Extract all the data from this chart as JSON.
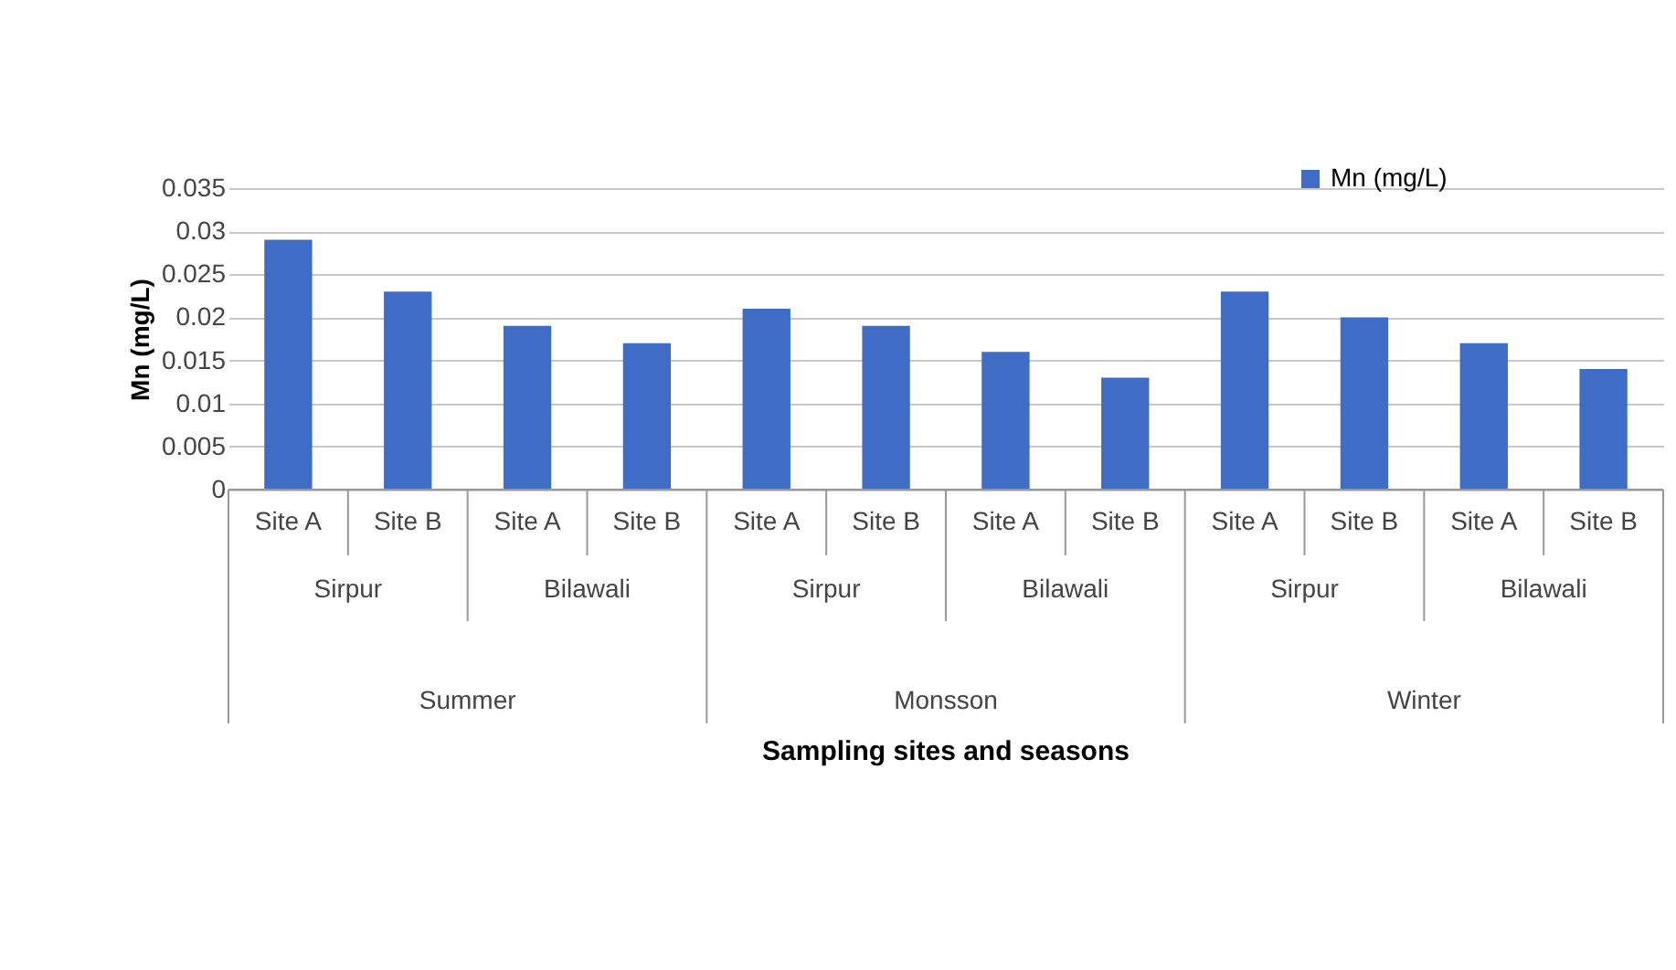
{
  "chart_data": {
    "type": "bar",
    "ylabel": "Mn (mg/L)",
    "categories": [
      "Site A",
      "Site B",
      "Site A",
      "Site B",
      "Site A",
      "Site B",
      "Site A",
      "Site B",
      "Site A",
      "Site B",
      "Site A",
      "Site B"
    ],
    "series": [
      {
        "name": "Mn (mg/L)",
        "color": "#3f6cc4",
        "values": [
          0.029,
          0.023,
          0.019,
          0.017,
          0.021,
          0.019,
          0.016,
          0.013,
          0.023,
          0.02,
          0.017,
          0.014
        ]
      }
    ],
    "ylim": [
      0,
      0.035
    ],
    "yticks": [
      0,
      0.005,
      0.01,
      0.015,
      0.02,
      0.025,
      0.03,
      0.035
    ],
    "annotations": [
      "Sirpur",
      "Bilawali",
      "Sirpur",
      "Bilawali",
      "Sirpur",
      "Bilawali",
      "Summer",
      "Monsson",
      "Winter",
      "Sampling sites and seasons"
    ],
    "grid": "y",
    "legend": "top right"
  }
}
